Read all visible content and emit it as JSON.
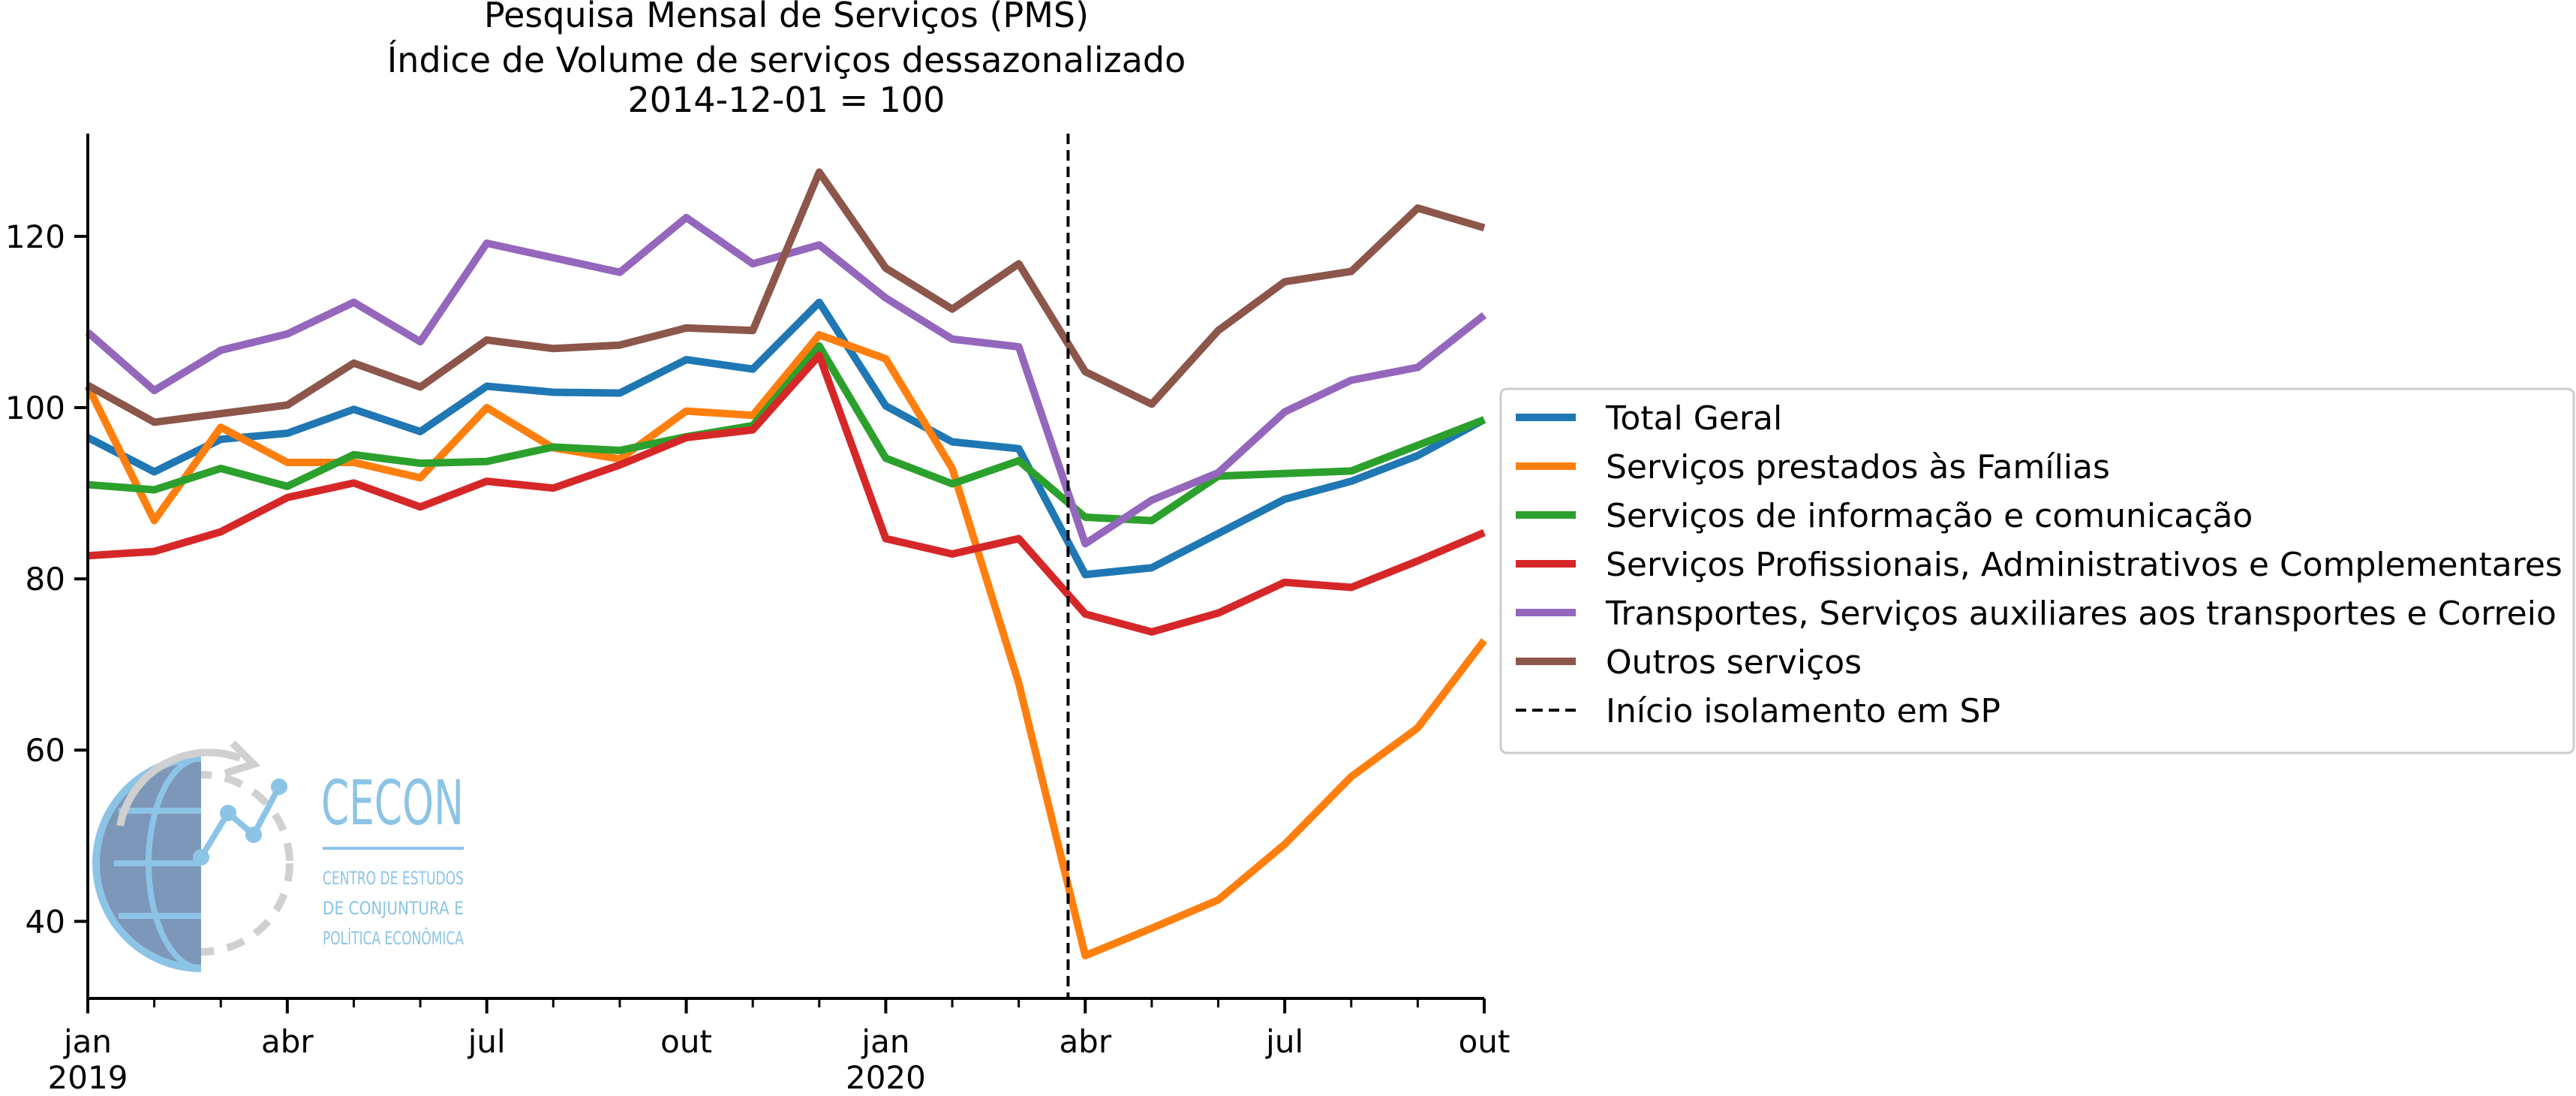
{
  "chart_data": {
    "type": "line",
    "title": "Pesquisa Mensal de Serviços (PMS)",
    "subtitle": "Índice de Volume de serviços dessazonalizado",
    "subtitle2": "2014-12-01 = 100",
    "xlabel": "",
    "ylabel": "",
    "x": [
      "2019-01",
      "2019-02",
      "2019-03",
      "2019-04",
      "2019-05",
      "2019-06",
      "2019-07",
      "2019-08",
      "2019-09",
      "2019-10",
      "2019-11",
      "2019-12",
      "2020-01",
      "2020-02",
      "2020-03",
      "2020-04",
      "2020-05",
      "2020-06",
      "2020-07",
      "2020-08",
      "2020-09",
      "2020-10"
    ],
    "ylim": [
      31,
      132
    ],
    "yticks": [
      40,
      60,
      80,
      100,
      120
    ],
    "xticks": [
      {
        "x": "2019-01",
        "label": "jan",
        "year": "2019"
      },
      {
        "x": "2019-04",
        "label": "abr",
        "year": ""
      },
      {
        "x": "2019-07",
        "label": "jul",
        "year": ""
      },
      {
        "x": "2019-10",
        "label": "out",
        "year": ""
      },
      {
        "x": "2020-01",
        "label": "jan",
        "year": "2020"
      },
      {
        "x": "2020-04",
        "label": "abr",
        "year": ""
      },
      {
        "x": "2020-07",
        "label": "jul",
        "year": ""
      },
      {
        "x": "2020-10",
        "label": "out",
        "year": ""
      }
    ],
    "vline": {
      "x": "2020-03-24",
      "label": "Início isolamento em SP",
      "style": "dashed",
      "color": "#000000"
    },
    "grid": false,
    "legend_position": "right",
    "series": [
      {
        "name": "Total Geral",
        "color": "#1f77b4",
        "values": [
          96.5,
          92.5,
          96.3,
          97.0,
          99.8,
          97.2,
          102.5,
          101.8,
          101.7,
          105.6,
          104.5,
          112.3,
          100.2,
          96.0,
          95.2,
          80.5,
          81.3,
          85.3,
          89.3,
          91.4,
          94.4,
          98.6
        ]
      },
      {
        "name": "Serviços prestados às Famílias",
        "color": "#ff7f0e",
        "values": [
          102.5,
          86.8,
          97.7,
          93.6,
          93.6,
          91.8,
          100.0,
          95.3,
          94.0,
          99.6,
          99.1,
          108.5,
          105.7,
          92.9,
          67.8,
          36.0,
          39.2,
          42.5,
          49.0,
          56.9,
          62.6,
          72.8
        ]
      },
      {
        "name": "Serviços de informação e comunicação",
        "color": "#2ca02c",
        "values": [
          91.0,
          90.4,
          92.9,
          90.8,
          94.5,
          93.5,
          93.7,
          95.4,
          95.0,
          96.6,
          97.9,
          107.2,
          94.1,
          91.1,
          93.8,
          87.2,
          86.8,
          92.0,
          92.3,
          92.6,
          95.6,
          98.6
        ]
      },
      {
        "name": "Serviços Profissionais, Administrativos e Complementares",
        "color": "#d62728",
        "values": [
          82.7,
          83.2,
          85.5,
          89.5,
          91.2,
          88.4,
          91.4,
          90.6,
          93.3,
          96.5,
          97.4,
          106.1,
          84.7,
          82.9,
          84.7,
          75.9,
          73.8,
          76.0,
          79.6,
          79.0,
          82.1,
          85.4
        ]
      },
      {
        "name": "Transportes, Serviços auxiliares aos transportes e Correio",
        "color": "#9467bd",
        "values": [
          108.8,
          102.0,
          106.7,
          108.6,
          112.3,
          107.7,
          119.2,
          117.5,
          115.8,
          122.2,
          116.8,
          119.0,
          112.8,
          108.0,
          107.1,
          84.1,
          89.2,
          92.4,
          99.5,
          103.2,
          104.7,
          110.8
        ]
      },
      {
        "name": "Outros serviços",
        "color": "#8c564b",
        "values": [
          102.6,
          98.3,
          99.3,
          100.3,
          105.2,
          102.4,
          107.9,
          106.9,
          107.3,
          109.3,
          109.0,
          127.5,
          116.3,
          111.5,
          116.8,
          104.2,
          100.4,
          109.0,
          114.7,
          115.9,
          123.3,
          121.0
        ]
      }
    ]
  },
  "logo": {
    "name": "CECON",
    "line1": "CENTRO DE ESTUDOS",
    "line2": "DE CONJUNTURA E",
    "line3": "POLÍTICA ECONÔMICA"
  }
}
